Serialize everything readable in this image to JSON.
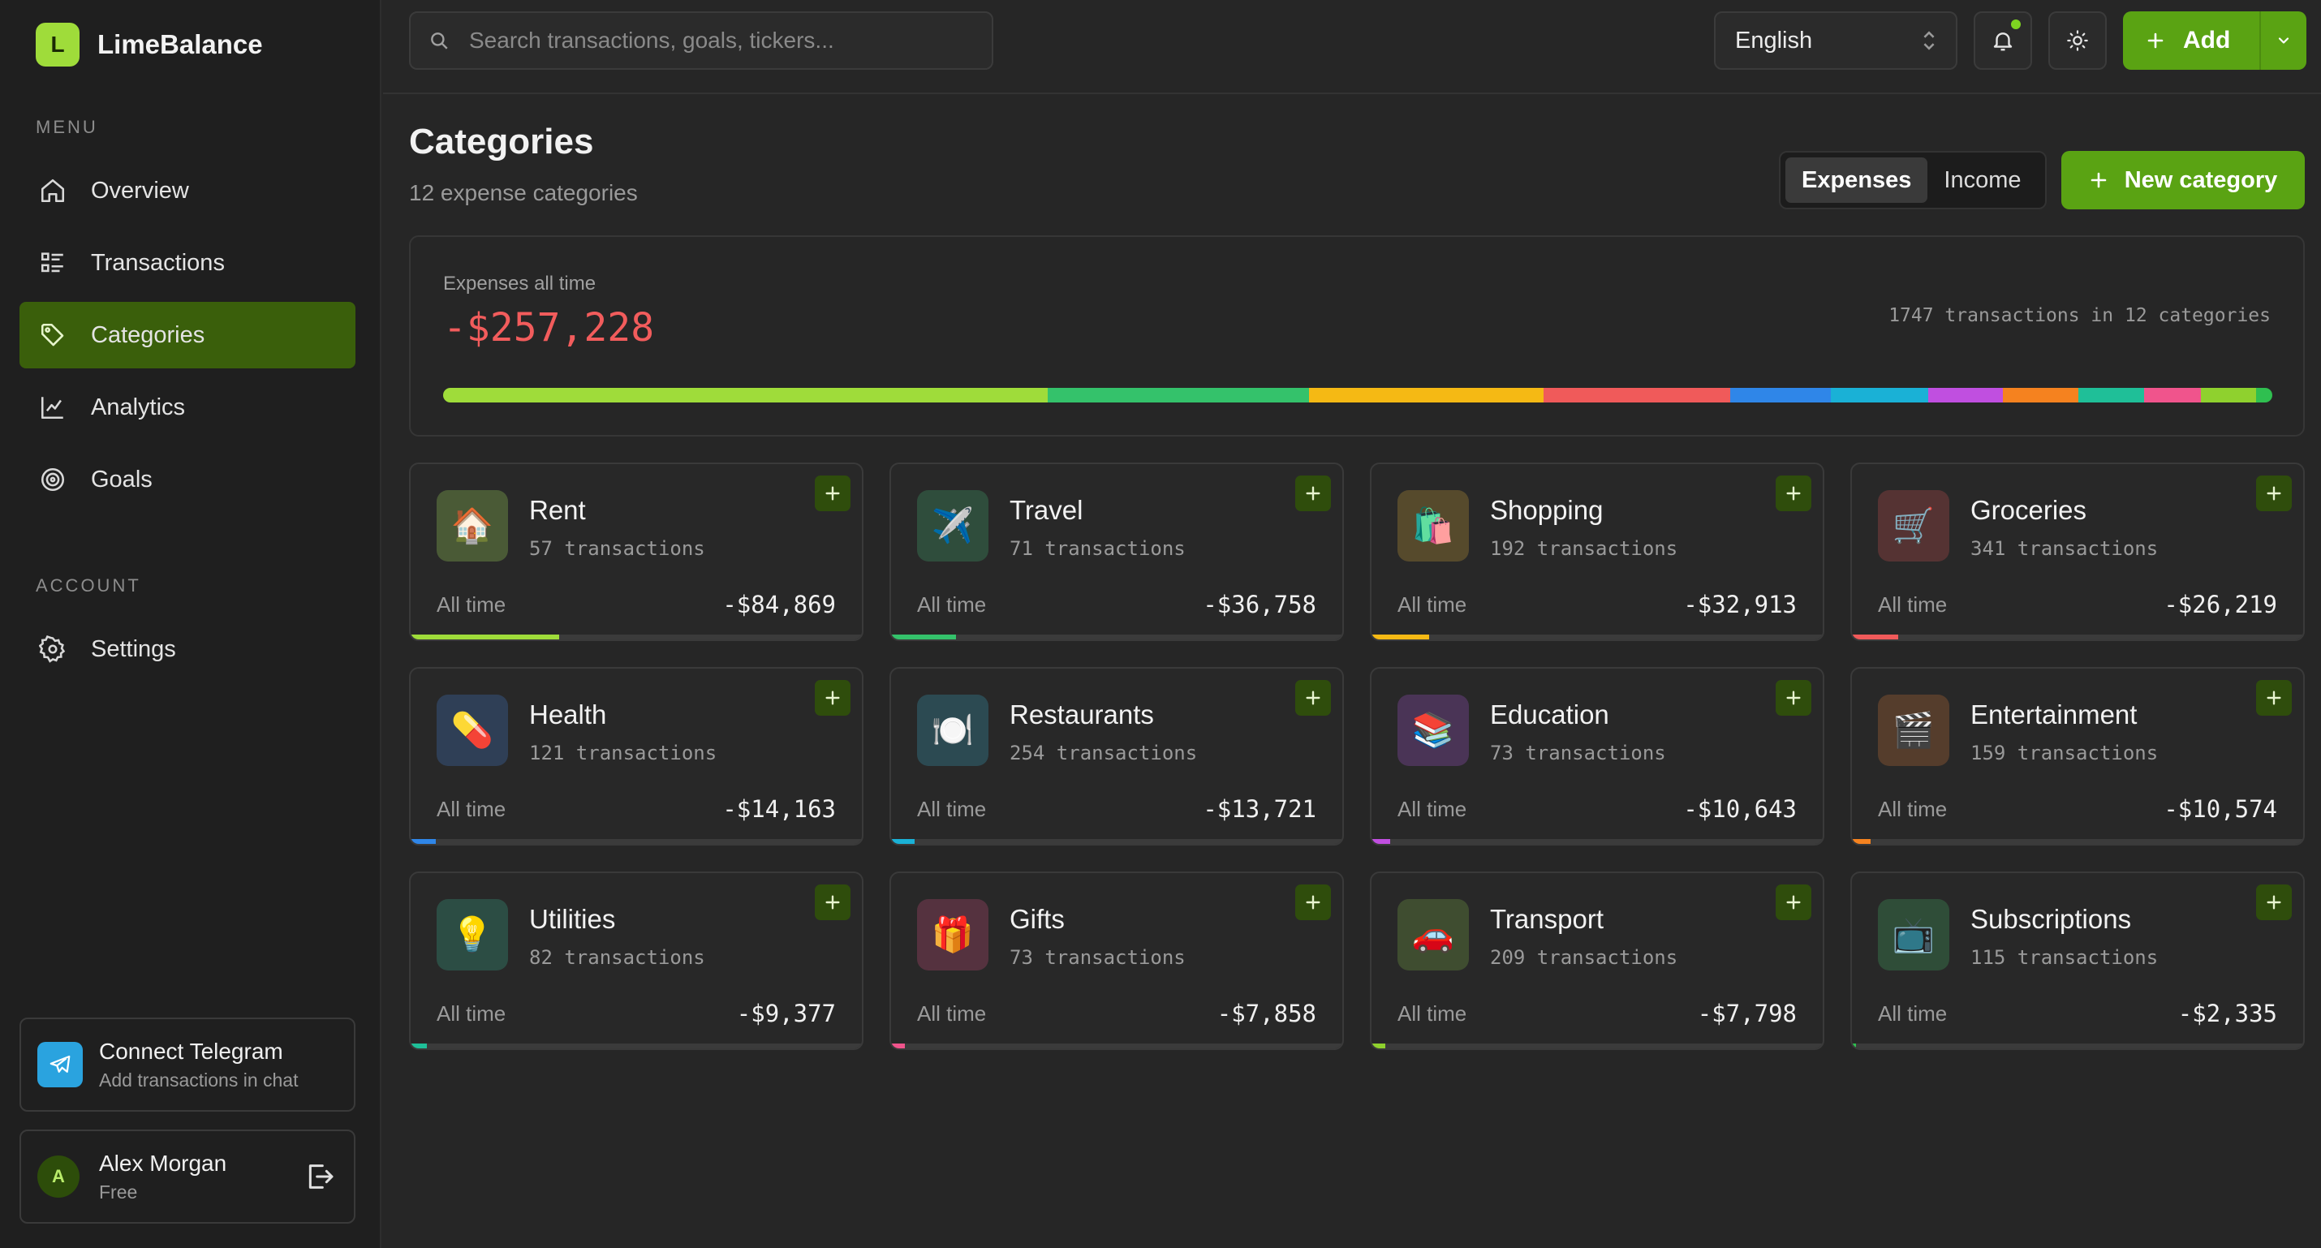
{
  "app": {
    "name": "LimeBalance",
    "logo_letter": "L"
  },
  "sidebar": {
    "menu_label": "MENU",
    "items": [
      {
        "label": "Overview",
        "icon": "home-icon"
      },
      {
        "label": "Transactions",
        "icon": "list-icon"
      },
      {
        "label": "Categories",
        "icon": "tag-icon",
        "active": true
      },
      {
        "label": "Analytics",
        "icon": "chart-icon"
      },
      {
        "label": "Goals",
        "icon": "target-icon"
      }
    ],
    "account_label": "ACCOUNT",
    "account_items": [
      {
        "label": "Settings",
        "icon": "gear-icon"
      }
    ],
    "telegram": {
      "title": "Connect Telegram",
      "subtitle": "Add transactions in chat"
    },
    "user": {
      "initial": "A",
      "name": "Alex Morgan",
      "plan": "Free"
    }
  },
  "topbar": {
    "search_placeholder": "Search transactions, goals, tickers...",
    "language": "English",
    "add_label": "Add"
  },
  "page": {
    "title": "Categories",
    "subtitle": "12 expense categories",
    "toggle": [
      "Expenses",
      "Income"
    ],
    "toggle_selected": "Expenses",
    "new_category_label": "New category"
  },
  "summary": {
    "label": "Expenses all time",
    "total": "-$257,228",
    "meta": "1747 transactions in 12 categories"
  },
  "colors": {
    "accent": "#5aa313",
    "negative": "#f25c5c"
  },
  "categories": [
    {
      "name": "Rent",
      "emoji": "🏠",
      "count": "57 transactions",
      "period": "All time",
      "amount": "-$84,869",
      "share": 0.33,
      "color": "#9fdc3a",
      "icon_bg": "#4a5a36"
    },
    {
      "name": "Travel",
      "emoji": "✈️",
      "count": "71 transactions",
      "period": "All time",
      "amount": "-$36,758",
      "share": 0.143,
      "color": "#34c26b",
      "icon_bg": "#2f4d3c"
    },
    {
      "name": "Shopping",
      "emoji": "🛍️",
      "count": "192 transactions",
      "period": "All time",
      "amount": "-$32,913",
      "share": 0.128,
      "color": "#f5b914",
      "icon_bg": "#564a2c"
    },
    {
      "name": "Groceries",
      "emoji": "🛒",
      "count": "341 transactions",
      "period": "All time",
      "amount": "-$26,219",
      "share": 0.102,
      "color": "#f05a5a",
      "icon_bg": "#553333"
    },
    {
      "name": "Health",
      "emoji": "💊",
      "count": "121 transactions",
      "period": "All time",
      "amount": "-$14,163",
      "share": 0.055,
      "color": "#2f86e8",
      "icon_bg": "#2f3f56"
    },
    {
      "name": "Restaurants",
      "emoji": "🍽️",
      "count": "254 transactions",
      "period": "All time",
      "amount": "-$13,721",
      "share": 0.053,
      "color": "#1ab1d6",
      "icon_bg": "#2c4a52"
    },
    {
      "name": "Education",
      "emoji": "📚",
      "count": "73 transactions",
      "period": "All time",
      "amount": "-$10,643",
      "share": 0.041,
      "color": "#c04fe0",
      "icon_bg": "#4a3456"
    },
    {
      "name": "Entertainment",
      "emoji": "🎬",
      "count": "159 transactions",
      "period": "All time",
      "amount": "-$10,574",
      "share": 0.041,
      "color": "#f5821f",
      "icon_bg": "#553d2c"
    },
    {
      "name": "Utilities",
      "emoji": "💡",
      "count": "82 transactions",
      "period": "All time",
      "amount": "-$9,377",
      "share": 0.036,
      "color": "#1fbf98",
      "icon_bg": "#2c4d44"
    },
    {
      "name": "Gifts",
      "emoji": "🎁",
      "count": "73 transactions",
      "period": "All time",
      "amount": "-$7,858",
      "share": 0.031,
      "color": "#f0548c",
      "icon_bg": "#55323f"
    },
    {
      "name": "Transport",
      "emoji": "🚗",
      "count": "209 transactions",
      "period": "All time",
      "amount": "-$7,798",
      "share": 0.03,
      "color": "#8fd12e",
      "icon_bg": "#3f4d30"
    },
    {
      "name": "Subscriptions",
      "emoji": "📺",
      "count": "115 transactions",
      "period": "All time",
      "amount": "-$2,335",
      "share": 0.009,
      "color": "#2fbf50",
      "icon_bg": "#2f4d38"
    }
  ]
}
